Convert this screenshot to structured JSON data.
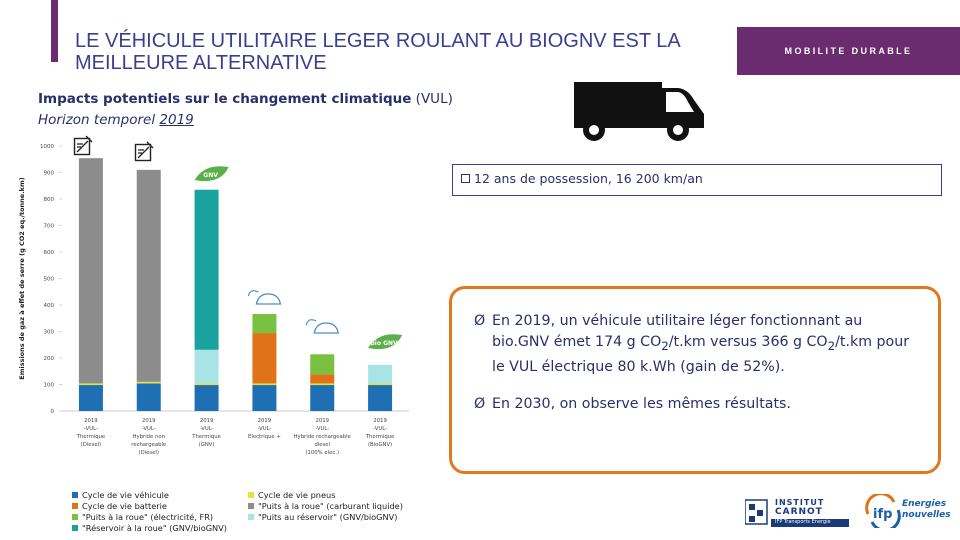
{
  "header": {
    "title": "LE VÉHICULE UTILITAIRE LEGER ROULANT AU BIOGNV EST LA MEILLEURE ALTERNATIVE",
    "tag": "MOBILITE  DURABLE",
    "accent_color": "#6a2c6e"
  },
  "subtitle": {
    "line1_bold": "Impacts potentiels sur le changement climatique",
    "line1_rest": " (VUL)",
    "line2_prefix": "Horizon temporel ",
    "line2_year": "2019"
  },
  "condition": {
    "text": "12 ans de possession, 16 200 km/an"
  },
  "results": [
    {
      "arrow": "Ø",
      "part1": "En 2019, un véhicule utilitaire léger fonctionnant au bio.GNV émet 174 g CO",
      "sub1": "2",
      "part2": "/t.km versus 366 g CO",
      "sub2": "2",
      "part3": "/t.km pour le VUL électrique 80 k.Wh (gain de 52%)."
    },
    {
      "arrow": "Ø",
      "part1": "En 2030, on observe les mêmes résultats."
    }
  ],
  "chart_data": {
    "type": "bar",
    "stacked": true,
    "ylabel": "Emissions de gaz à effet de serre (g CO2 eq./tonne.km)",
    "ylim": [
      0,
      1000
    ],
    "yticks": [
      "0",
      "100",
      "200",
      "300",
      "400",
      "500",
      "600",
      "700",
      "800",
      "900",
      "1000"
    ],
    "categories": [
      {
        "year": "2019",
        "l1": "-VUL-",
        "l2": "Thermique",
        "l3": "(Diesel)",
        "l4": ""
      },
      {
        "year": "2019",
        "l1": "-VUL-",
        "l2": "Hybride non",
        "l3": "rechargeable",
        "l4": "(Diesel)"
      },
      {
        "year": "2019",
        "l1": "-VUL-",
        "l2": "Thermique",
        "l3": "(GNV)",
        "l4": ""
      },
      {
        "year": "2019",
        "l1": "-VUL-",
        "l2": "Electrique +",
        "l3": "",
        "l4": ""
      },
      {
        "year": "2019",
        "l1": "-VUL-",
        "l2": "Hybride rechargeable",
        "l3": "diesel",
        "l4": "(100% elec.)"
      },
      {
        "year": "2019",
        "l1": "-VUL-",
        "l2": "Thermique",
        "l3": "(BioGNV)",
        "l4": ""
      }
    ],
    "series": [
      {
        "name": "Cycle de vie véhicule",
        "color": "#1f6fb5",
        "values": [
          98,
          104,
          98,
          98,
          98,
          98
        ]
      },
      {
        "name": "Cycle de vie pneus",
        "color": "#e8e23a",
        "values": [
          6,
          6,
          6,
          6,
          6,
          6
        ]
      },
      {
        "name": "Cycle de vie batterie",
        "color": "#e07318",
        "values": [
          0,
          0,
          0,
          190,
          35,
          0
        ]
      },
      {
        "name": "\"Puits à la roue\" (carburant liquide)",
        "color": "#8c8c8c",
        "values": [
          850,
          800,
          0,
          0,
          0,
          0
        ]
      },
      {
        "name": "\"Puits à la roue\" (électricité, FR)",
        "color": "#7ac142",
        "values": [
          0,
          0,
          0,
          72,
          75,
          0
        ]
      },
      {
        "name": "\"Puits au réservoir\" (GNV/bioGNV)",
        "color": "#a8e4e6",
        "values": [
          0,
          0,
          127,
          0,
          0,
          70
        ]
      },
      {
        "name": "\"Réservoir à la roue\" (GNV/bioGNV)",
        "color": "#1aa39e",
        "values": [
          0,
          0,
          604,
          0,
          0,
          0
        ]
      }
    ],
    "badges": [
      "GNV",
      "bio GNV"
    ],
    "legend_position": "bottom"
  },
  "logos": {
    "carnot_line1": "INSTITUT",
    "carnot_line2": "CARNOT",
    "carnot_line3": "IFP Transports Energie",
    "ifp_line1": "Energies",
    "ifp_line2": "nouvelles"
  }
}
